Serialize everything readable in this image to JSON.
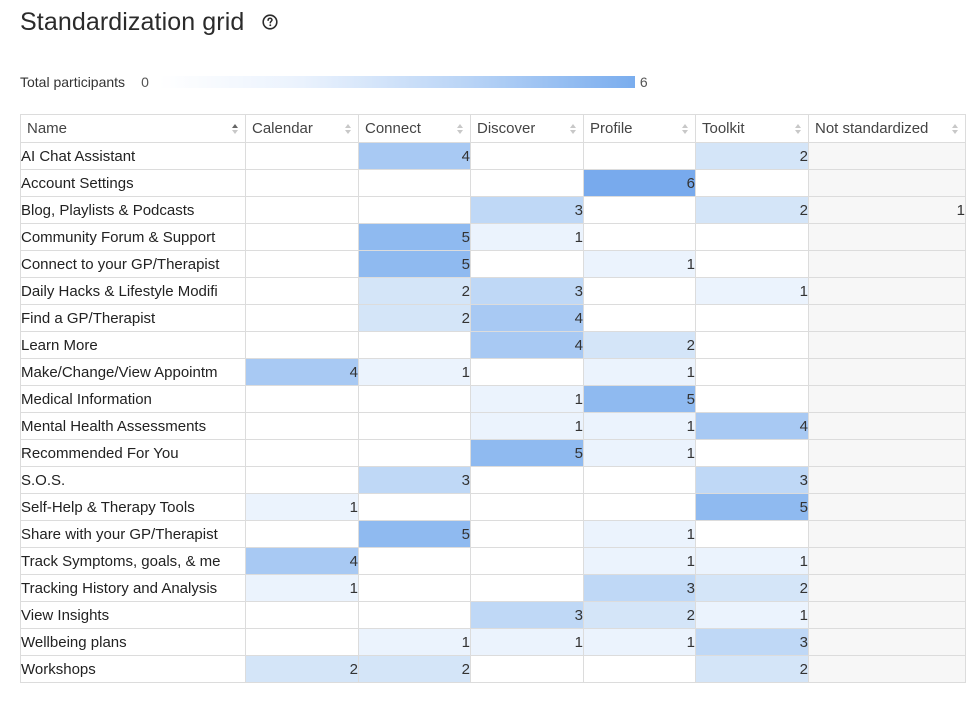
{
  "header": {
    "title": "Standardization grid",
    "help_icon": "help-circle-icon"
  },
  "legend": {
    "label": "Total participants",
    "min": "0",
    "max": "6"
  },
  "scale_colors": [
    "#ffffff",
    "#ebf3fd",
    "#d4e5f8",
    "#bfd8f6",
    "#a8c9f3",
    "#8fbaf0",
    "#78aaed"
  ],
  "table": {
    "columns": [
      {
        "label": "Name",
        "sort": "asc"
      },
      {
        "label": "Calendar",
        "sort": "none"
      },
      {
        "label": "Connect",
        "sort": "none"
      },
      {
        "label": "Discover",
        "sort": "none"
      },
      {
        "label": "Profile",
        "sort": "none"
      },
      {
        "label": "Toolkit",
        "sort": "none"
      },
      {
        "label": "Not standardized",
        "sort": "none"
      }
    ],
    "rows": [
      {
        "name": "AI Chat Assistant",
        "values": [
          null,
          4,
          null,
          null,
          2,
          null
        ]
      },
      {
        "name": "Account Settings",
        "values": [
          null,
          null,
          null,
          6,
          null,
          null
        ]
      },
      {
        "name": "Blog, Playlists & Podcasts",
        "values": [
          null,
          null,
          3,
          null,
          2,
          1
        ]
      },
      {
        "name": "Community Forum & Support",
        "values": [
          null,
          5,
          1,
          null,
          null,
          null
        ]
      },
      {
        "name": "Connect to your GP/Therapist",
        "values": [
          null,
          5,
          null,
          1,
          null,
          null
        ]
      },
      {
        "name": "Daily Hacks & Lifestyle Modifi",
        "values": [
          null,
          2,
          3,
          null,
          1,
          null
        ]
      },
      {
        "name": "Find a GP/Therapist",
        "values": [
          null,
          2,
          4,
          null,
          null,
          null
        ]
      },
      {
        "name": "Learn More",
        "values": [
          null,
          null,
          4,
          2,
          null,
          null
        ]
      },
      {
        "name": "Make/Change/View Appointm",
        "values": [
          4,
          1,
          null,
          1,
          null,
          null
        ]
      },
      {
        "name": "Medical Information",
        "values": [
          null,
          null,
          1,
          5,
          null,
          null
        ]
      },
      {
        "name": "Mental Health Assessments",
        "values": [
          null,
          null,
          1,
          1,
          4,
          null
        ]
      },
      {
        "name": "Recommended For You",
        "values": [
          null,
          null,
          5,
          1,
          null,
          null
        ]
      },
      {
        "name": "S.O.S.",
        "values": [
          null,
          3,
          null,
          null,
          3,
          null
        ]
      },
      {
        "name": "Self-Help & Therapy Tools",
        "values": [
          1,
          null,
          null,
          null,
          5,
          null
        ]
      },
      {
        "name": "Share with your GP/Therapist",
        "values": [
          null,
          5,
          null,
          1,
          null,
          null
        ]
      },
      {
        "name": "Track Symptoms, goals, & me",
        "values": [
          4,
          null,
          null,
          1,
          1,
          null
        ]
      },
      {
        "name": "Tracking History and Analysis",
        "values": [
          1,
          null,
          null,
          3,
          2,
          null
        ]
      },
      {
        "name": "View Insights",
        "values": [
          null,
          null,
          3,
          2,
          1,
          null
        ]
      },
      {
        "name": "Wellbeing plans",
        "values": [
          null,
          1,
          1,
          1,
          3,
          null
        ]
      },
      {
        "name": "Workshops",
        "values": [
          2,
          2,
          null,
          null,
          2,
          null
        ]
      }
    ]
  }
}
